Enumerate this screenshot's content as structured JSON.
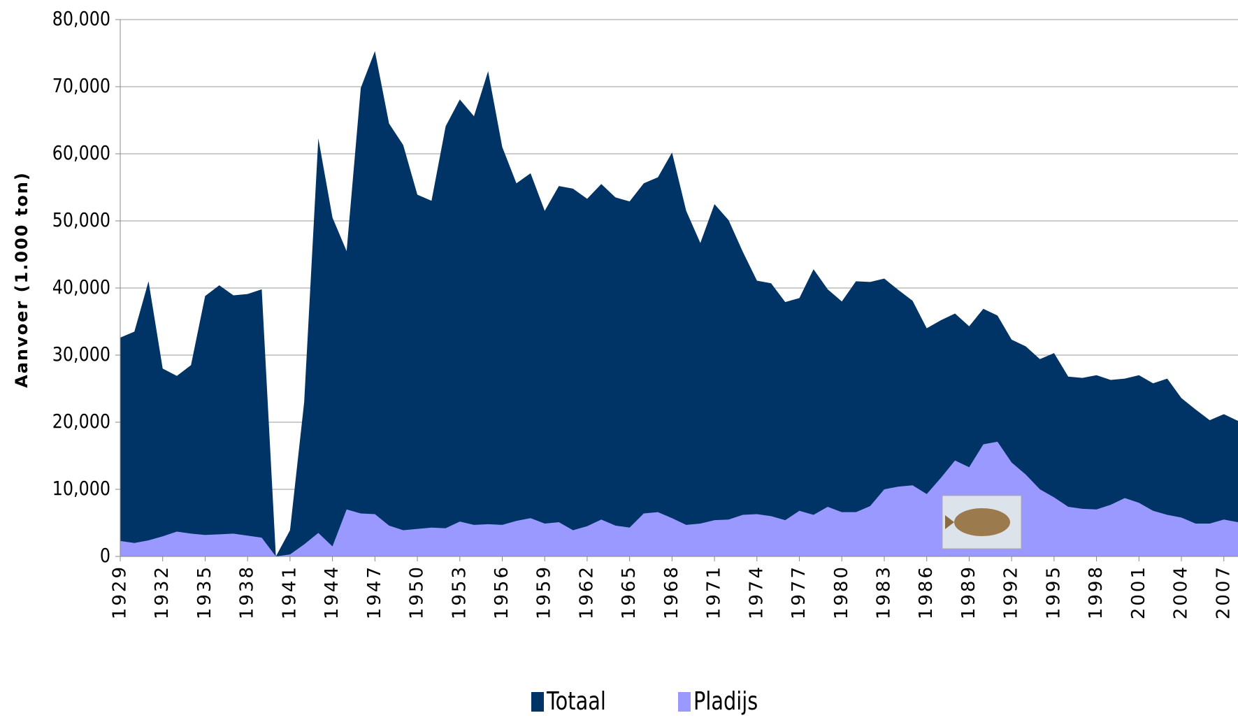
{
  "chart_data": {
    "type": "area",
    "ylabel": "Aanvoer (1.000 ton)",
    "x": [
      1929,
      1930,
      1931,
      1932,
      1933,
      1934,
      1935,
      1936,
      1937,
      1938,
      1939,
      1940,
      1941,
      1942,
      1943,
      1944,
      1945,
      1946,
      1947,
      1948,
      1949,
      1950,
      1951,
      1952,
      1953,
      1954,
      1955,
      1956,
      1957,
      1958,
      1959,
      1960,
      1961,
      1962,
      1963,
      1964,
      1965,
      1966,
      1967,
      1968,
      1969,
      1970,
      1971,
      1972,
      1973,
      1974,
      1975,
      1976,
      1977,
      1978,
      1979,
      1980,
      1981,
      1982,
      1983,
      1984,
      1985,
      1986,
      1987,
      1988,
      1989,
      1990,
      1991,
      1992,
      1993,
      1994,
      1995,
      1996,
      1997,
      1998,
      1999,
      2000,
      2001,
      2002,
      2003,
      2004,
      2005,
      2006,
      2007,
      2008
    ],
    "xlim": [
      1929,
      2008
    ],
    "xticks": [
      1929,
      1932,
      1935,
      1938,
      1941,
      1944,
      1947,
      1950,
      1953,
      1956,
      1959,
      1962,
      1965,
      1968,
      1971,
      1974,
      1977,
      1980,
      1983,
      1986,
      1989,
      1992,
      1995,
      1998,
      2001,
      2004,
      2007
    ],
    "ylim": [
      0,
      80000
    ],
    "yticks": [
      {
        "value": 0,
        "label": "0"
      },
      {
        "value": 10000,
        "label": "10,000"
      },
      {
        "value": 20000,
        "label": "20,000"
      },
      {
        "value": 30000,
        "label": "30,000"
      },
      {
        "value": 40000,
        "label": "40,000"
      },
      {
        "value": 50000,
        "label": "50,000"
      },
      {
        "value": 60000,
        "label": "60,000"
      },
      {
        "value": 70000,
        "label": "70,000"
      },
      {
        "value": 80000,
        "label": "80,000"
      }
    ],
    "grid": true,
    "legend": "bottom",
    "series": [
      {
        "name": "Totaal",
        "color": "#003366",
        "values": [
          32600,
          33500,
          41000,
          28000,
          26900,
          28500,
          38800,
          40400,
          38900,
          39100,
          39800,
          0,
          3900,
          23000,
          62300,
          50500,
          45500,
          69800,
          75300,
          64500,
          61300,
          53900,
          53000,
          64100,
          68100,
          65600,
          72300,
          61000,
          55600,
          57100,
          51500,
          55200,
          54800,
          53300,
          55500,
          53500,
          52900,
          55600,
          56500,
          60200,
          51500,
          46700,
          52500,
          50100,
          45400,
          41100,
          40700,
          37900,
          38500,
          42800,
          39800,
          38000,
          41000,
          40900,
          41400,
          39700,
          38100,
          34000,
          35200,
          36200,
          34300,
          36900,
          35900,
          32300,
          31300,
          29400,
          30300,
          26800,
          26600,
          27000,
          26300,
          26500,
          27000,
          25800,
          26500,
          23600,
          21900,
          20300,
          21200,
          20200
        ]
      },
      {
        "name": "Pladijs",
        "color": "#9999ff",
        "values": [
          2300,
          2000,
          2400,
          3000,
          3700,
          3400,
          3200,
          3300,
          3400,
          3100,
          2800,
          0,
          300,
          1800,
          3500,
          1500,
          7000,
          6400,
          6300,
          4600,
          3900,
          4100,
          4300,
          4200,
          5200,
          4700,
          4800,
          4700,
          5300,
          5700,
          4900,
          5100,
          3900,
          4500,
          5500,
          4600,
          4300,
          6400,
          6600,
          5700,
          4700,
          4900,
          5400,
          5500,
          6200,
          6300,
          6000,
          5400,
          6800,
          6200,
          7400,
          6600,
          6600,
          7500,
          10000,
          10400,
          10600,
          9300,
          11700,
          14300,
          13300,
          16700,
          17100,
          14000,
          12200,
          10000,
          8800,
          7400,
          7100,
          7000,
          7700,
          8700,
          8000,
          6800,
          6200,
          5800,
          4900,
          4900,
          5500,
          5100
        ]
      }
    ]
  }
}
